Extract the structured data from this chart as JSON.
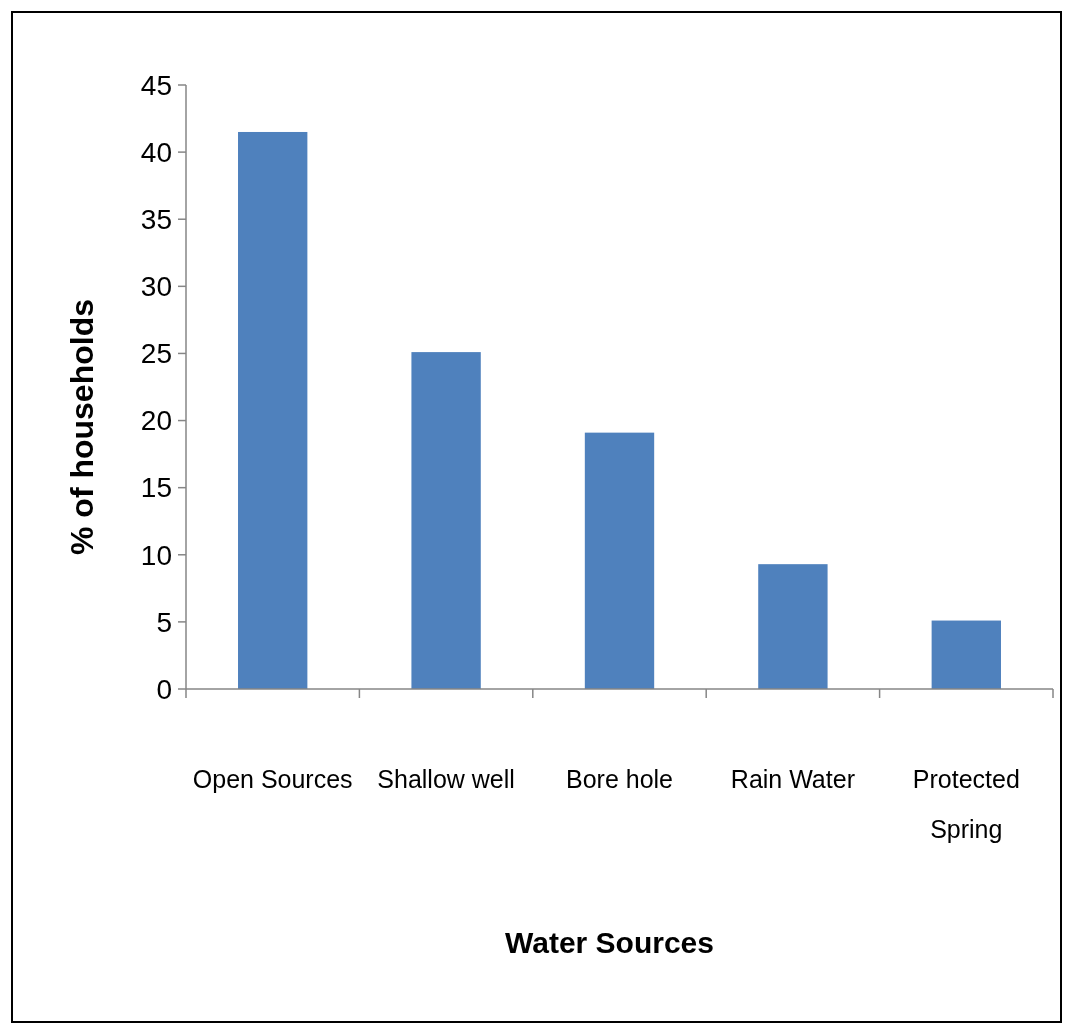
{
  "chart_data": {
    "type": "bar",
    "xlabel": "Water Sources",
    "ylabel": "% of households",
    "categories": [
      "Open Sources",
      "Shallow well",
      "Bore hole",
      "Rain Water",
      "Protected Spring"
    ],
    "values": [
      41.5,
      25.1,
      19.1,
      9.3,
      5.1
    ],
    "color": "#4f81bd",
    "ylim": [
      0,
      45
    ],
    "yticks": [
      0,
      5,
      10,
      15,
      20,
      25,
      30,
      35,
      40,
      45
    ],
    "grid": false
  }
}
